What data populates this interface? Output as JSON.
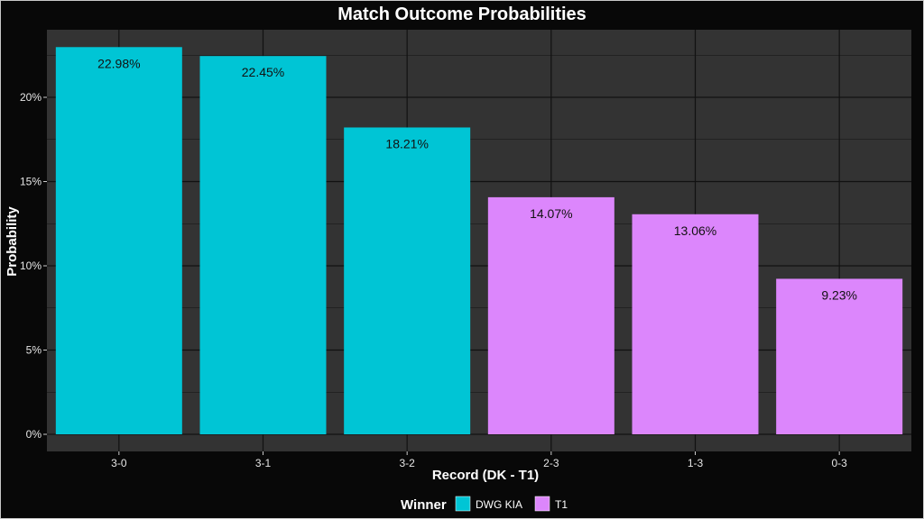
{
  "chart_data": {
    "type": "bar",
    "title": "Match Outcome Probabilities",
    "xlabel": "Record (DK - T1)",
    "ylabel": "Probability",
    "categories": [
      "3-0",
      "3-1",
      "3-2",
      "2-3",
      "1-3",
      "0-3"
    ],
    "values": [
      22.98,
      22.45,
      18.21,
      14.07,
      13.06,
      9.23
    ],
    "value_labels": [
      "22.98%",
      "22.45%",
      "18.21%",
      "14.07%",
      "13.06%",
      "9.23%"
    ],
    "winner": [
      "DWG KIA",
      "DWG KIA",
      "DWG KIA",
      "T1",
      "T1",
      "T1"
    ],
    "ylim": [
      0,
      24
    ],
    "yticks": [
      0,
      5,
      10,
      15,
      20
    ],
    "ytick_labels": [
      "0%",
      "5%",
      "10%",
      "15%",
      "20%"
    ],
    "grid": true,
    "legend": {
      "title": "Winner",
      "position": "bottom",
      "entries": [
        {
          "name": "DWG KIA",
          "color": "#00c5d5"
        },
        {
          "name": "T1",
          "color": "#dc86fc"
        }
      ]
    },
    "colors": {
      "panel": "#333333",
      "grid": "#111111",
      "background": "#080808"
    }
  }
}
